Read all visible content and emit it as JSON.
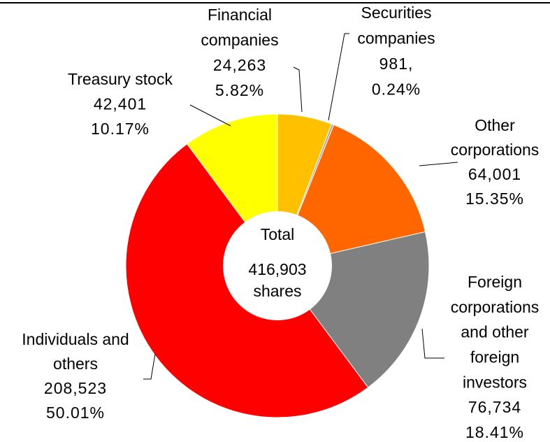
{
  "chart_data": {
    "type": "pie",
    "categories": [
      [
        "Financial",
        "companies"
      ],
      [
        "Securities",
        "companies"
      ],
      [
        "Other",
        "corporations"
      ],
      [
        "Foreign",
        "corporations",
        "and other",
        "foreign",
        "investors"
      ],
      [
        "Individuals and",
        "others"
      ],
      [
        "Treasury stock"
      ]
    ],
    "values": [
      24263,
      981,
      64001,
      76734,
      208523,
      42401
    ],
    "value_labels": [
      "24,263",
      "981,",
      "64,001",
      "76,734",
      "208,523",
      "42,401"
    ],
    "percentages": [
      5.82,
      0.24,
      15.35,
      18.41,
      50.01,
      10.17
    ],
    "percentage_labels": [
      "5.82%",
      "0.24%",
      "15.35%",
      "18.41%",
      "50.01%",
      "10.17%"
    ],
    "colors": [
      "#FFC000",
      "#A5A5A5",
      "#FF6600",
      "#808080",
      "#FF0000",
      "#FFFF00"
    ],
    "center_text": [
      "Total",
      "416,903",
      "shares"
    ],
    "donut": true
  }
}
